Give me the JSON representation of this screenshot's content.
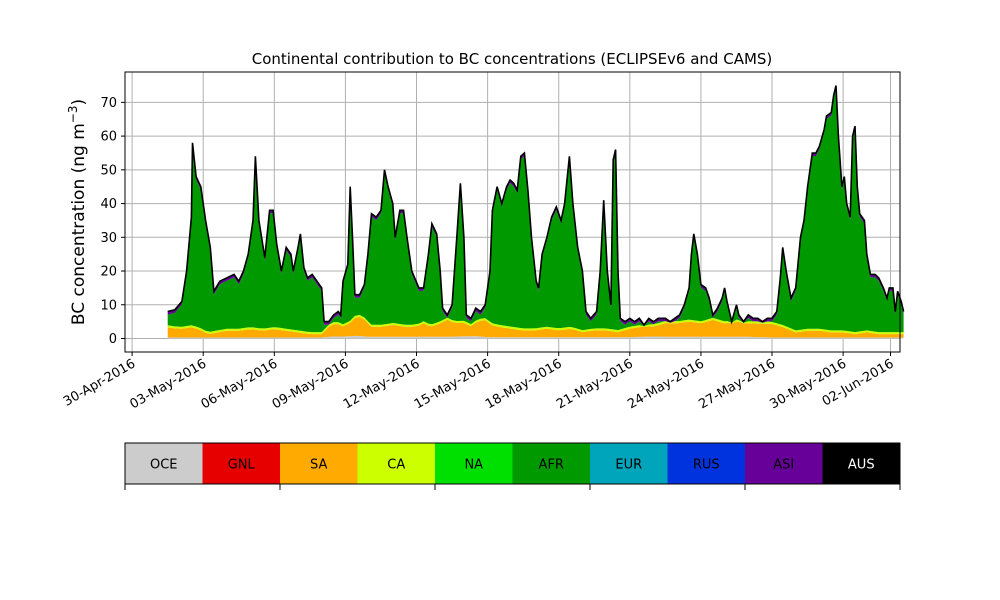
{
  "chart_data": {
    "type": "area",
    "title": "Continental contribution to BC concentrations (ECLIPSEv6 and CAMS)",
    "ylabel_text": "BC concentration (ng m",
    "ylabel_sup": "−3",
    "ylabel_close": ")",
    "xlabel": "",
    "ylim": [
      -4,
      79
    ],
    "yticks": [
      0,
      10,
      20,
      30,
      40,
      50,
      60,
      70
    ],
    "xlim_days": [
      -0.3,
      32.4
    ],
    "xticks": [
      {
        "day": 0,
        "label": "30-Apr-2016"
      },
      {
        "day": 3,
        "label": "03-May-2016"
      },
      {
        "day": 6,
        "label": "06-May-2016"
      },
      {
        "day": 9,
        "label": "09-May-2016"
      },
      {
        "day": 12,
        "label": "12-May-2016"
      },
      {
        "day": 15,
        "label": "15-May-2016"
      },
      {
        "day": 18,
        "label": "18-May-2016"
      },
      {
        "day": 21,
        "label": "21-May-2016"
      },
      {
        "day": 24,
        "label": "24-May-2016"
      },
      {
        "day": 27,
        "label": "27-May-2016"
      },
      {
        "day": 30,
        "label": "30-May-2016"
      },
      {
        "day": 32,
        "label": "02-Jun-2016"
      }
    ],
    "grid": true,
    "total": [
      [
        1.5,
        8
      ],
      [
        1.8,
        8.5
      ],
      [
        2.1,
        11
      ],
      [
        2.3,
        20
      ],
      [
        2.5,
        36
      ],
      [
        2.55,
        58
      ],
      [
        2.7,
        48
      ],
      [
        2.9,
        45
      ],
      [
        3.1,
        35
      ],
      [
        3.3,
        27
      ],
      [
        3.45,
        14
      ],
      [
        3.7,
        17
      ],
      [
        4.0,
        18
      ],
      [
        4.3,
        19
      ],
      [
        4.5,
        17
      ],
      [
        4.7,
        20
      ],
      [
        4.9,
        25
      ],
      [
        5.1,
        35
      ],
      [
        5.2,
        54
      ],
      [
        5.35,
        35
      ],
      [
        5.6,
        24
      ],
      [
        5.8,
        38
      ],
      [
        5.95,
        38
      ],
      [
        6.1,
        28
      ],
      [
        6.3,
        20
      ],
      [
        6.5,
        27
      ],
      [
        6.7,
        25
      ],
      [
        6.8,
        20
      ],
      [
        7.0,
        27
      ],
      [
        7.1,
        31
      ],
      [
        7.25,
        21
      ],
      [
        7.4,
        18
      ],
      [
        7.6,
        19
      ],
      [
        7.8,
        17
      ],
      [
        8.0,
        15
      ],
      [
        8.1,
        5
      ],
      [
        8.3,
        5
      ],
      [
        8.5,
        7
      ],
      [
        8.7,
        8
      ],
      [
        8.8,
        7
      ],
      [
        8.9,
        17
      ],
      [
        9.1,
        22
      ],
      [
        9.2,
        45
      ],
      [
        9.3,
        30
      ],
      [
        9.4,
        13
      ],
      [
        9.6,
        13
      ],
      [
        9.8,
        16
      ],
      [
        9.95,
        25
      ],
      [
        10.1,
        37
      ],
      [
        10.3,
        36
      ],
      [
        10.5,
        38
      ],
      [
        10.65,
        50
      ],
      [
        10.8,
        45
      ],
      [
        11.0,
        40
      ],
      [
        11.1,
        30
      ],
      [
        11.3,
        38
      ],
      [
        11.45,
        38
      ],
      [
        11.6,
        30
      ],
      [
        11.8,
        20
      ],
      [
        12.1,
        15
      ],
      [
        12.3,
        15
      ],
      [
        12.5,
        25
      ],
      [
        12.65,
        34
      ],
      [
        12.85,
        31
      ],
      [
        13.0,
        20
      ],
      [
        13.1,
        9
      ],
      [
        13.3,
        7
      ],
      [
        13.5,
        10
      ],
      [
        13.7,
        30
      ],
      [
        13.85,
        46
      ],
      [
        14.0,
        30
      ],
      [
        14.1,
        7
      ],
      [
        14.3,
        6
      ],
      [
        14.5,
        9
      ],
      [
        14.7,
        8
      ],
      [
        14.9,
        10
      ],
      [
        15.1,
        20
      ],
      [
        15.2,
        38
      ],
      [
        15.4,
        45
      ],
      [
        15.6,
        40
      ],
      [
        15.8,
        45
      ],
      [
        15.95,
        47
      ],
      [
        16.1,
        46
      ],
      [
        16.25,
        44
      ],
      [
        16.4,
        54
      ],
      [
        16.55,
        55
      ],
      [
        16.7,
        44
      ],
      [
        16.85,
        30
      ],
      [
        17.05,
        17
      ],
      [
        17.15,
        15
      ],
      [
        17.3,
        25
      ],
      [
        17.5,
        30
      ],
      [
        17.7,
        36
      ],
      [
        17.9,
        39
      ],
      [
        18.1,
        35
      ],
      [
        18.25,
        40
      ],
      [
        18.45,
        54
      ],
      [
        18.6,
        40
      ],
      [
        18.8,
        27
      ],
      [
        19.0,
        20
      ],
      [
        19.15,
        8
      ],
      [
        19.35,
        6
      ],
      [
        19.6,
        8
      ],
      [
        19.75,
        20
      ],
      [
        19.9,
        41
      ],
      [
        20.05,
        20
      ],
      [
        20.2,
        10
      ],
      [
        20.3,
        53
      ],
      [
        20.4,
        56
      ],
      [
        20.5,
        20
      ],
      [
        20.6,
        6
      ],
      [
        20.8,
        5
      ],
      [
        21.0,
        6
      ],
      [
        21.2,
        5
      ],
      [
        21.4,
        6
      ],
      [
        21.6,
        4
      ],
      [
        21.8,
        6
      ],
      [
        22.0,
        5
      ],
      [
        22.2,
        6
      ],
      [
        22.5,
        6
      ],
      [
        22.7,
        5
      ],
      [
        22.9,
        6
      ],
      [
        23.1,
        7
      ],
      [
        23.3,
        10
      ],
      [
        23.5,
        15
      ],
      [
        23.6,
        25
      ],
      [
        23.7,
        31
      ],
      [
        23.85,
        25
      ],
      [
        24.0,
        16
      ],
      [
        24.2,
        15
      ],
      [
        24.35,
        12
      ],
      [
        24.5,
        7
      ],
      [
        24.7,
        9
      ],
      [
        24.9,
        12
      ],
      [
        25.0,
        15
      ],
      [
        25.1,
        11
      ],
      [
        25.3,
        5
      ],
      [
        25.5,
        10
      ],
      [
        25.6,
        7
      ],
      [
        25.8,
        5
      ],
      [
        26.0,
        7
      ],
      [
        26.2,
        6
      ],
      [
        26.4,
        6
      ],
      [
        26.6,
        5
      ],
      [
        26.8,
        6
      ],
      [
        27.0,
        6
      ],
      [
        27.2,
        8
      ],
      [
        27.35,
        18
      ],
      [
        27.45,
        27
      ],
      [
        27.6,
        20
      ],
      [
        27.8,
        12
      ],
      [
        28.0,
        15
      ],
      [
        28.2,
        30
      ],
      [
        28.35,
        35
      ],
      [
        28.5,
        45
      ],
      [
        28.7,
        55
      ],
      [
        28.85,
        55
      ],
      [
        29.0,
        57
      ],
      [
        29.2,
        62
      ],
      [
        29.3,
        66
      ],
      [
        29.5,
        67
      ],
      [
        29.6,
        72
      ],
      [
        29.7,
        75
      ],
      [
        29.8,
        60
      ],
      [
        29.95,
        45
      ],
      [
        30.05,
        48
      ],
      [
        30.15,
        40
      ],
      [
        30.3,
        36
      ],
      [
        30.4,
        60
      ],
      [
        30.5,
        63
      ],
      [
        30.6,
        45
      ],
      [
        30.7,
        37
      ],
      [
        30.9,
        35
      ],
      [
        31.0,
        25
      ],
      [
        31.15,
        19
      ],
      [
        31.35,
        19
      ],
      [
        31.5,
        18
      ],
      [
        31.7,
        15
      ],
      [
        31.85,
        12
      ],
      [
        31.95,
        15
      ],
      [
        32.1,
        15
      ],
      [
        32.2,
        8
      ],
      [
        32.3,
        14
      ],
      [
        32.45,
        11
      ],
      [
        32.55,
        8
      ]
    ],
    "sa_band": [
      [
        1.5,
        3
      ],
      [
        2.0,
        2.5
      ],
      [
        2.5,
        3
      ],
      [
        2.8,
        2.5
      ],
      [
        3.2,
        1
      ],
      [
        3.6,
        1.5
      ],
      [
        4.0,
        2
      ],
      [
        4.5,
        2
      ],
      [
        5.0,
        2.5
      ],
      [
        5.5,
        2
      ],
      [
        6.0,
        2.5
      ],
      [
        6.5,
        2
      ],
      [
        7.0,
        1.5
      ],
      [
        7.5,
        1
      ],
      [
        8.0,
        1
      ],
      [
        8.3,
        3
      ],
      [
        8.6,
        4
      ],
      [
        8.9,
        3
      ],
      [
        9.2,
        4
      ],
      [
        9.5,
        6
      ],
      [
        9.8,
        5
      ],
      [
        10.1,
        3
      ],
      [
        10.5,
        3
      ],
      [
        11.0,
        3.5
      ],
      [
        11.5,
        3
      ],
      [
        12.0,
        3
      ],
      [
        12.3,
        4
      ],
      [
        12.6,
        3
      ],
      [
        13.0,
        4
      ],
      [
        13.3,
        5
      ],
      [
        13.6,
        4
      ],
      [
        14.0,
        4
      ],
      [
        14.3,
        3
      ],
      [
        14.6,
        4.5
      ],
      [
        14.9,
        5
      ],
      [
        15.2,
        3.5
      ],
      [
        15.5,
        3
      ],
      [
        16.0,
        2.5
      ],
      [
        16.5,
        2
      ],
      [
        17.0,
        2
      ],
      [
        17.5,
        2.5
      ],
      [
        18.0,
        2
      ],
      [
        18.5,
        2.5
      ],
      [
        19.0,
        1.5
      ],
      [
        19.5,
        2
      ],
      [
        20.0,
        2
      ],
      [
        20.5,
        1.5
      ],
      [
        21.0,
        2.5
      ],
      [
        21.5,
        3
      ],
      [
        22.0,
        3
      ],
      [
        22.5,
        4
      ],
      [
        23.0,
        4
      ],
      [
        23.5,
        4.5
      ],
      [
        24.0,
        4
      ],
      [
        24.5,
        5
      ],
      [
        25.0,
        4
      ],
      [
        25.5,
        4.5
      ],
      [
        26.0,
        4
      ],
      [
        26.5,
        4
      ],
      [
        27.0,
        4
      ],
      [
        27.5,
        3
      ],
      [
        28.0,
        1.5
      ],
      [
        28.5,
        2
      ],
      [
        29.0,
        2
      ],
      [
        29.5,
        1.5
      ],
      [
        30.0,
        1.5
      ],
      [
        30.5,
        1
      ],
      [
        31.0,
        1.5
      ],
      [
        31.5,
        1
      ],
      [
        32.0,
        1
      ],
      [
        32.55,
        1
      ]
    ],
    "oce_band": [
      [
        1.5,
        0.3
      ],
      [
        8.0,
        0.3
      ],
      [
        8.5,
        0.6
      ],
      [
        9.0,
        0.6
      ],
      [
        9.5,
        0.8
      ],
      [
        10.0,
        0.5
      ],
      [
        13.0,
        0.5
      ],
      [
        14.5,
        0.7
      ],
      [
        15.0,
        0.4
      ],
      [
        21.0,
        0.4
      ],
      [
        22.0,
        0.6
      ],
      [
        23.0,
        0.5
      ],
      [
        26.0,
        0.5
      ],
      [
        27.0,
        0.3
      ],
      [
        32.55,
        0.3
      ]
    ],
    "top_band": 0.9,
    "legend": [
      {
        "name": "OCE",
        "color": "#cccccc",
        "text_color": "#000000"
      },
      {
        "name": "GNL",
        "color": "#e60000",
        "text_color": "#000000"
      },
      {
        "name": "SA",
        "color": "#ffaa00",
        "text_color": "#000000"
      },
      {
        "name": "CA",
        "color": "#ccff00",
        "text_color": "#000000"
      },
      {
        "name": "NA",
        "color": "#00e000",
        "text_color": "#000000"
      },
      {
        "name": "AFR",
        "color": "#009900",
        "text_color": "#000000"
      },
      {
        "name": "EUR",
        "color": "#00a5bb",
        "text_color": "#000000"
      },
      {
        "name": "RUS",
        "color": "#0033dd",
        "text_color": "#000000"
      },
      {
        "name": "ASI",
        "color": "#660099",
        "text_color": "#000000"
      },
      {
        "name": "AUS",
        "color": "#000000",
        "text_color": "#ffffff"
      }
    ]
  }
}
